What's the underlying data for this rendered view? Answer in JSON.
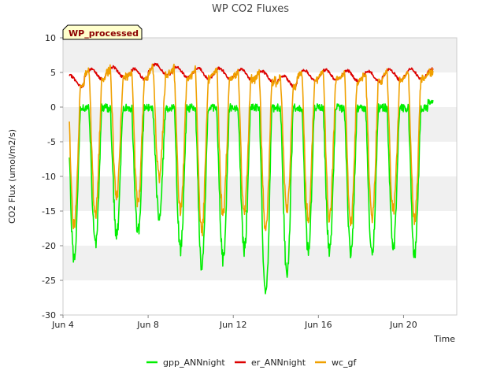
{
  "chart_data": {
    "type": "line",
    "title": "WP CO2 Fluxes",
    "badge": "WP_processed",
    "xlabel": "Time",
    "ylabel": "CO2 Flux (umol/m2/s)",
    "ylim": [
      -30,
      10
    ],
    "yticks": [
      -30,
      -25,
      -20,
      -15,
      -10,
      -5,
      0,
      5,
      10
    ],
    "xlim_days": [
      4,
      22.5
    ],
    "xticks": [
      {
        "day": 4,
        "label": "Jun 4"
      },
      {
        "day": 8,
        "label": "Jun 8"
      },
      {
        "day": 12,
        "label": "Jun 12"
      },
      {
        "day": 16,
        "label": "Jun 16"
      },
      {
        "day": 20,
        "label": "Jun 20"
      }
    ],
    "data_range_days": [
      4.3,
      21.4
    ],
    "grid": "horizontal bands",
    "legend_position": "bottom",
    "series": [
      {
        "name": "gpp_ANNnight",
        "color": "#00ee00",
        "description": "daily cycle: ~0 at night, midday minimum",
        "night_value": 0,
        "daily_minimum": [
          {
            "day": 4,
            "min": -22
          },
          {
            "day": 5,
            "min": -20
          },
          {
            "day": 6,
            "min": -18.5
          },
          {
            "day": 7,
            "min": -18
          },
          {
            "day": 8,
            "min": -15.5
          },
          {
            "day": 9,
            "min": -20.5
          },
          {
            "day": 10,
            "min": -23
          },
          {
            "day": 11,
            "min": -22
          },
          {
            "day": 12,
            "min": -20.5
          },
          {
            "day": 13,
            "min": -27.5
          },
          {
            "day": 14,
            "min": -24
          },
          {
            "day": 15,
            "min": -20.5
          },
          {
            "day": 16,
            "min": -20.5
          },
          {
            "day": 17,
            "min": -21
          },
          {
            "day": 18,
            "min": -21.5
          },
          {
            "day": 19,
            "min": -20.5
          },
          {
            "day": 20,
            "min": -21.5
          },
          {
            "day": 21,
            "min": 1
          }
        ]
      },
      {
        "name": "er_ANNnight",
        "color": "#dd0000",
        "description": "ecosystem respiration, slow oscillation between ~4 and ~6",
        "daily_peak": [
          {
            "day": 4,
            "peak": 4.5
          },
          {
            "day": 5,
            "peak": 5.5
          },
          {
            "day": 6,
            "peak": 5.8
          },
          {
            "day": 7,
            "peak": 5.5
          },
          {
            "day": 8,
            "peak": 6.2
          },
          {
            "day": 9,
            "peak": 5.8
          },
          {
            "day": 10,
            "peak": 5.6
          },
          {
            "day": 11,
            "peak": 5.6
          },
          {
            "day": 12,
            "peak": 5.5
          },
          {
            "day": 13,
            "peak": 5.2
          },
          {
            "day": 14,
            "peak": 4.5
          },
          {
            "day": 15,
            "peak": 5.3
          },
          {
            "day": 16,
            "peak": 5.4
          },
          {
            "day": 17,
            "peak": 5.3
          },
          {
            "day": 18,
            "peak": 5.2
          },
          {
            "day": 19,
            "peak": 5.4
          },
          {
            "day": 20,
            "peak": 5.5
          },
          {
            "day": 21,
            "peak": 5.5
          }
        ]
      },
      {
        "name": "wc_gf",
        "color": "#f0a000",
        "description": "net flux: ~er at night, midday minimum",
        "daily_minimum": [
          {
            "day": 4,
            "min": -17
          },
          {
            "day": 5,
            "min": -15.5
          },
          {
            "day": 6,
            "min": -13
          },
          {
            "day": 7,
            "min": -14
          },
          {
            "day": 8,
            "min": -10
          },
          {
            "day": 9,
            "min": -15
          },
          {
            "day": 10,
            "min": -18
          },
          {
            "day": 11,
            "min": -15.5
          },
          {
            "day": 12,
            "min": -15
          },
          {
            "day": 13,
            "min": -18
          },
          {
            "day": 14,
            "min": -15
          },
          {
            "day": 15,
            "min": -16
          },
          {
            "day": 16,
            "min": -16
          },
          {
            "day": 17,
            "min": -17
          },
          {
            "day": 18,
            "min": -16
          },
          {
            "day": 19,
            "min": -15
          },
          {
            "day": 20,
            "min": -16
          },
          {
            "day": 21,
            "min": 5
          }
        ]
      }
    ]
  },
  "colors": {
    "plot_background": "#ffffff",
    "band": "#f0f0f0",
    "axis": "#cccccc",
    "badge_fill": "#ffffcc",
    "badge_border": "#000000"
  }
}
